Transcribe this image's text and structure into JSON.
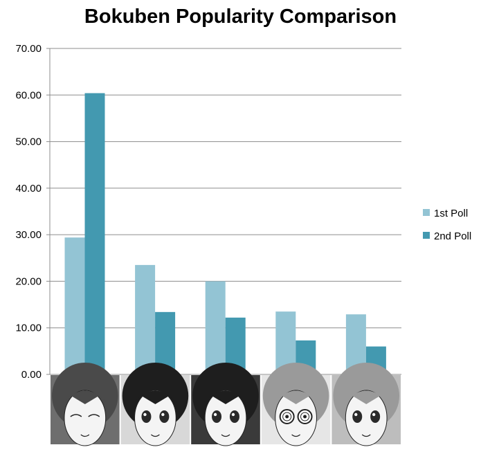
{
  "chart_data": {
    "type": "bar",
    "title": "Bokuben Popularity Comparison",
    "xlabel": "",
    "ylabel": "",
    "ylim": [
      0,
      70
    ],
    "yticks": [
      "0.00",
      "10.00",
      "20.00",
      "30.00",
      "40.00",
      "50.00",
      "60.00",
      "70.00"
    ],
    "grid": true,
    "legend": "right",
    "categories": [
      "",
      "",
      "",
      "",
      ""
    ],
    "category_images": [
      "character-portrait-1",
      "character-portrait-2",
      "character-portrait-3",
      "character-portrait-4",
      "character-portrait-5"
    ],
    "series": [
      {
        "name": "1st Poll",
        "color": "#93c4d4",
        "values": [
          29.4,
          23.5,
          20.0,
          13.5,
          12.9
        ]
      },
      {
        "name": "2nd Poll",
        "color": "#4399b0",
        "values": [
          60.4,
          13.4,
          12.2,
          7.3,
          6.0
        ]
      }
    ]
  }
}
